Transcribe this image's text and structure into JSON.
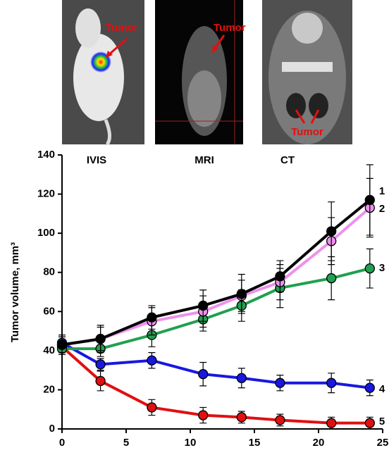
{
  "panels": [
    {
      "label": "IVIS",
      "annotation": "Tumor"
    },
    {
      "label": "MRI",
      "annotation": "Tumor"
    },
    {
      "label": "CT",
      "annotation": "Tumor"
    }
  ],
  "chart_data": {
    "type": "line",
    "y_label": "Tumor volume, mm³",
    "x": [
      0,
      3,
      7,
      11,
      14,
      17,
      21,
      24
    ],
    "xlim": [
      0,
      25
    ],
    "xticks": [
      0,
      5,
      10,
      15,
      20,
      25
    ],
    "ylim": [
      0,
      140
    ],
    "yticks": [
      0,
      20,
      40,
      60,
      80,
      100,
      120,
      140
    ],
    "grid": false,
    "series": [
      {
        "name": "1",
        "color": "#000000",
        "values": [
          43,
          46,
          57,
          63,
          69,
          78,
          101,
          117
        ],
        "errors": [
          4,
          6,
          6,
          8,
          10,
          8,
          15,
          18
        ]
      },
      {
        "name": "2",
        "color": "#ee90ee",
        "values": [
          43,
          46,
          55,
          60,
          68,
          75,
          96,
          113
        ],
        "errors": [
          5,
          7,
          7,
          8,
          8,
          9,
          12,
          15
        ]
      },
      {
        "name": "3",
        "color": "#20a050",
        "values": [
          41,
          41,
          48,
          56,
          63,
          72,
          77,
          82
        ],
        "errors": [
          3,
          4,
          6,
          6,
          8,
          10,
          11,
          10
        ]
      },
      {
        "name": "4",
        "color": "#1818e0",
        "values": [
          44,
          33,
          35,
          28,
          26,
          23.5,
          23.5,
          21
        ],
        "errors": [
          3,
          3,
          4,
          6,
          5,
          4,
          5,
          4
        ]
      },
      {
        "name": "5",
        "color": "#e01010",
        "values": [
          42,
          24.5,
          11,
          7,
          6,
          4.5,
          3,
          3
        ],
        "errors": [
          3,
          5,
          4,
          4,
          3,
          3,
          3,
          3
        ]
      }
    ]
  }
}
